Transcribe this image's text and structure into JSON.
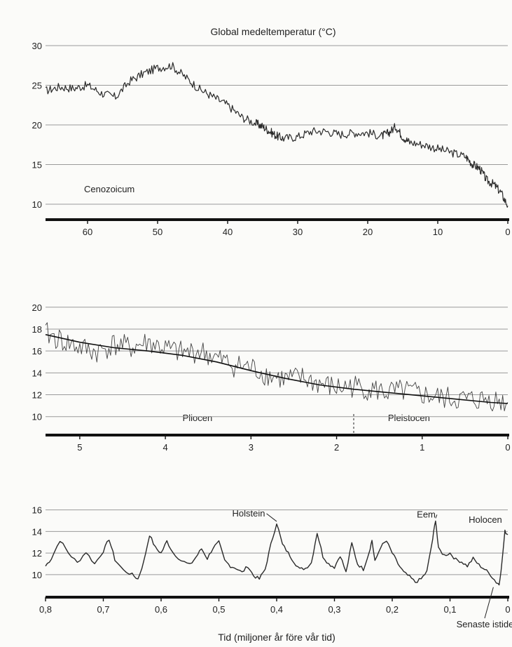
{
  "chart_data": [
    {
      "type": "line",
      "title": "Global medeltemperatur (°C)",
      "xlabel": "",
      "ylabel": "",
      "xlim": [
        66,
        0
      ],
      "ylim": [
        8.5,
        30
      ],
      "grid": true,
      "x_ticks": [
        60,
        50,
        40,
        30,
        20,
        10,
        0
      ],
      "y_ticks": [
        10,
        15,
        20,
        25,
        30
      ],
      "annotations": [
        {
          "text": "Cenozoicum",
          "x": 60.5,
          "y": 11.5
        }
      ],
      "series": [
        {
          "x": [
            66,
            64,
            62,
            60,
            58,
            56,
            54,
            52,
            50,
            48,
            46,
            44,
            42,
            40,
            38,
            36,
            35,
            34,
            33,
            32,
            30,
            28,
            26,
            24,
            22,
            20,
            18,
            17,
            16,
            15,
            14,
            12,
            10,
            8,
            6,
            5,
            4,
            3,
            2,
            1,
            0
          ],
          "y": [
            24.3,
            24.8,
            24.6,
            25.0,
            24.0,
            23.5,
            25.5,
            26.5,
            27.2,
            27.5,
            26.0,
            24.5,
            23.5,
            22.5,
            21.0,
            20.2,
            19.8,
            19.2,
            18.6,
            18.3,
            18.5,
            19.2,
            19.2,
            18.8,
            19.0,
            19.0,
            18.6,
            19.0,
            19.8,
            18.5,
            17.8,
            17.5,
            17.0,
            16.5,
            16.0,
            15.0,
            14.5,
            13.0,
            12.5,
            11.5,
            9.8
          ]
        }
      ]
    },
    {
      "type": "line",
      "title": "",
      "xlabel": "",
      "ylabel": "",
      "xlim": [
        5.4,
        0
      ],
      "ylim": [
        8.7,
        20.5
      ],
      "grid": true,
      "x_ticks": [
        5,
        4,
        3,
        2,
        1,
        0
      ],
      "y_ticks": [
        10,
        12,
        14,
        16,
        18,
        20
      ],
      "annotations": [
        {
          "text": "Pliocen",
          "x": 3.8,
          "y": 9.6
        },
        {
          "text": "Pleistocen",
          "x": 1.4,
          "y": 9.6
        }
      ],
      "series": [
        {
          "x": [
            5.4,
            5.2,
            5.0,
            4.8,
            4.6,
            4.4,
            4.2,
            4.0,
            3.8,
            3.6,
            3.4,
            3.2,
            3.0,
            2.8,
            2.6,
            2.4,
            2.2,
            2.0,
            1.8,
            1.6,
            1.4,
            1.2,
            1.0,
            0.8,
            0.6,
            0.4,
            0.2,
            0.0
          ],
          "y": [
            17.6,
            16.9,
            16.3,
            15.9,
            16.6,
            16.3,
            16.8,
            16.2,
            15.8,
            16.0,
            15.3,
            14.7,
            14.5,
            13.8,
            13.4,
            13.5,
            13.0,
            12.6,
            12.8,
            12.5,
            12.2,
            12.3,
            12.0,
            11.7,
            11.6,
            11.5,
            11.6,
            11.3
          ]
        },
        {
          "x": [
            5.4,
            5.0,
            4.6,
            4.2,
            3.8,
            3.4,
            3.0,
            2.6,
            2.2,
            1.8,
            1.4,
            1.0,
            0.6,
            0.2,
            0.0
          ],
          "y": [
            17.5,
            16.8,
            16.3,
            16.0,
            15.6,
            15.0,
            14.2,
            13.5,
            12.9,
            12.5,
            12.2,
            11.9,
            11.6,
            11.3,
            11.2
          ]
        }
      ]
    },
    {
      "type": "line",
      "title": "",
      "xlabel": "Tid (miljoner år före vår tid)",
      "ylabel": "",
      "xlim": [
        0.8,
        0
      ],
      "ylim": [
        8.5,
        16.3
      ],
      "grid": true,
      "x_ticks": [
        "0,8",
        "0,7",
        "0,6",
        "0,5",
        "0,4",
        "0,3",
        "0,2",
        "0,1",
        "0"
      ],
      "y_ticks": [
        10,
        12,
        14,
        16
      ],
      "annotations": [
        {
          "text": "Holstein",
          "x": 0.42,
          "y": 15.4
        },
        {
          "text": "Eem",
          "x": 0.125,
          "y": 15.3
        },
        {
          "text": "Holocen",
          "x": 0.01,
          "y": 14.4
        },
        {
          "text": "Senaste istiden",
          "x": 0.02,
          "y": 9.0
        }
      ],
      "series": [
        {
          "x": [
            0.8,
            0.79,
            0.775,
            0.76,
            0.745,
            0.73,
            0.715,
            0.7,
            0.69,
            0.68,
            0.665,
            0.65,
            0.64,
            0.63,
            0.62,
            0.61,
            0.6,
            0.59,
            0.58,
            0.565,
            0.55,
            0.54,
            0.53,
            0.52,
            0.51,
            0.5,
            0.49,
            0.48,
            0.47,
            0.46,
            0.45,
            0.44,
            0.43,
            0.42,
            0.41,
            0.4,
            0.39,
            0.38,
            0.37,
            0.36,
            0.35,
            0.34,
            0.33,
            0.32,
            0.31,
            0.3,
            0.29,
            0.28,
            0.27,
            0.26,
            0.25,
            0.24,
            0.235,
            0.23,
            0.22,
            0.21,
            0.2,
            0.19,
            0.18,
            0.17,
            0.16,
            0.15,
            0.14,
            0.13,
            0.125,
            0.12,
            0.11,
            0.1,
            0.09,
            0.08,
            0.07,
            0.06,
            0.05,
            0.04,
            0.03,
            0.02,
            0.015,
            0.01,
            0.005,
            0.0
          ],
          "y": [
            10.8,
            11.5,
            13.2,
            12.0,
            11.1,
            12.1,
            11.0,
            12.2,
            13.3,
            11.4,
            10.4,
            10.0,
            9.6,
            11.2,
            13.7,
            12.5,
            12.0,
            13.1,
            12.1,
            11.3,
            10.9,
            11.6,
            12.4,
            11.5,
            12.5,
            13.0,
            11.3,
            10.8,
            10.6,
            10.2,
            10.8,
            9.9,
            9.6,
            10.5,
            12.8,
            14.8,
            12.8,
            12.0,
            11.2,
            10.5,
            10.6,
            11.1,
            13.9,
            11.7,
            11.0,
            10.7,
            11.8,
            10.2,
            12.9,
            11.0,
            10.5,
            12.1,
            13.2,
            11.2,
            12.6,
            13.1,
            12.0,
            11.0,
            10.2,
            9.8,
            9.3,
            9.6,
            10.3,
            13.3,
            15.1,
            12.4,
            11.8,
            12.0,
            11.4,
            11.2,
            10.8,
            11.5,
            10.9,
            10.5,
            10.0,
            9.3,
            9.1,
            11.2,
            14.0,
            13.7
          ]
        }
      ]
    }
  ]
}
